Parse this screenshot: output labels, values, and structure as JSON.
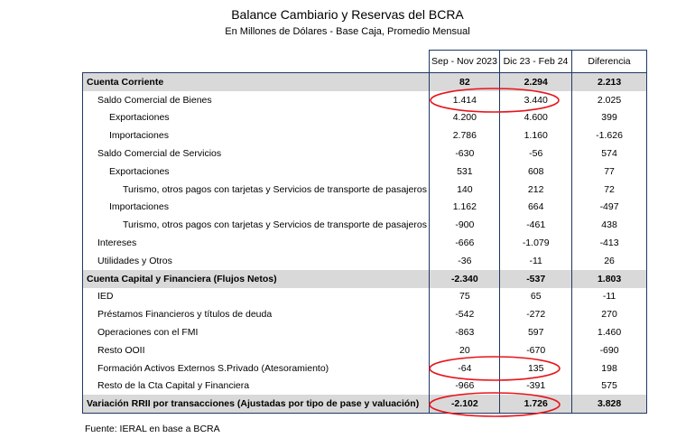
{
  "title": "Balance Cambiario y Reservas del BCRA",
  "subtitle": "En Millones de Dólares - Base Caja, Promedio Mensual",
  "columns": [
    "",
    "Sep - Nov 2023",
    "Dic 23 - Feb 24",
    "Diferencia"
  ],
  "rows": [
    {
      "label": "Cuenta Corriente",
      "level": 0,
      "total": true,
      "v": [
        "82",
        "2.294",
        "2.213"
      ]
    },
    {
      "label": "Saldo Comercial de Bienes",
      "level": 1,
      "v": [
        "1.414",
        "3.440",
        "2.025"
      ],
      "highlighted": true
    },
    {
      "label": "Exportaciones",
      "level": 2,
      "v": [
        "4.200",
        "4.600",
        "399"
      ]
    },
    {
      "label": "Importaciones",
      "level": 2,
      "v": [
        "2.786",
        "1.160",
        "-1.626"
      ]
    },
    {
      "label": "Saldo Comercial de Servicios",
      "level": 1,
      "v": [
        "-630",
        "-56",
        "574"
      ]
    },
    {
      "label": "Exportaciones",
      "level": 2,
      "v": [
        "531",
        "608",
        "77"
      ]
    },
    {
      "label": "Turismo, otros pagos con tarjetas y Servicios de transporte de pasajeros",
      "level": 3,
      "v": [
        "140",
        "212",
        "72"
      ]
    },
    {
      "label": "Importaciones",
      "level": 2,
      "v": [
        "1.162",
        "664",
        "-497"
      ]
    },
    {
      "label": "Turismo, otros pagos con tarjetas y Servicios de transporte de pasajeros",
      "level": 3,
      "v": [
        "-900",
        "-461",
        "438"
      ]
    },
    {
      "label": "Intereses",
      "level": 1,
      "v": [
        "-666",
        "-1.079",
        "-413"
      ]
    },
    {
      "label": "Utilidades y Otros",
      "level": 1,
      "v": [
        "-36",
        "-11",
        "26"
      ]
    },
    {
      "label": "Cuenta Capital y Financiera (Flujos Netos)",
      "level": 0,
      "total": true,
      "v": [
        "-2.340",
        "-537",
        "1.803"
      ]
    },
    {
      "label": "IED",
      "level": 1,
      "v": [
        "75",
        "65",
        "-11"
      ]
    },
    {
      "label": "Préstamos Financieros y títulos de deuda",
      "level": 1,
      "v": [
        "-542",
        "-272",
        "270"
      ]
    },
    {
      "label": "Operaciones con el FMI",
      "level": 1,
      "v": [
        "-863",
        "597",
        "1.460"
      ]
    },
    {
      "label": "Resto OOII",
      "level": 1,
      "v": [
        "20",
        "-670",
        "-690"
      ]
    },
    {
      "label": "Formación Activos Externos S.Privado (Atesoramiento)",
      "level": 1,
      "v": [
        "-64",
        "135",
        "198"
      ],
      "highlighted": true
    },
    {
      "label": "Resto de la Cta Capital y Financiera",
      "level": 1,
      "v": [
        "-966",
        "-391",
        "575"
      ]
    },
    {
      "label": "Variación RRII por transacciones (Ajustadas por tipo de pase y valuación)",
      "level": 0,
      "total": true,
      "v": [
        "-2.102",
        "1.726",
        "3.828"
      ],
      "highlighted": true
    }
  ],
  "footer": "Fuente: IERAL en base a BCRA",
  "colors": {
    "border": "#1f3864",
    "total_bg": "#d9d9d9",
    "highlight": "#e8141b"
  }
}
